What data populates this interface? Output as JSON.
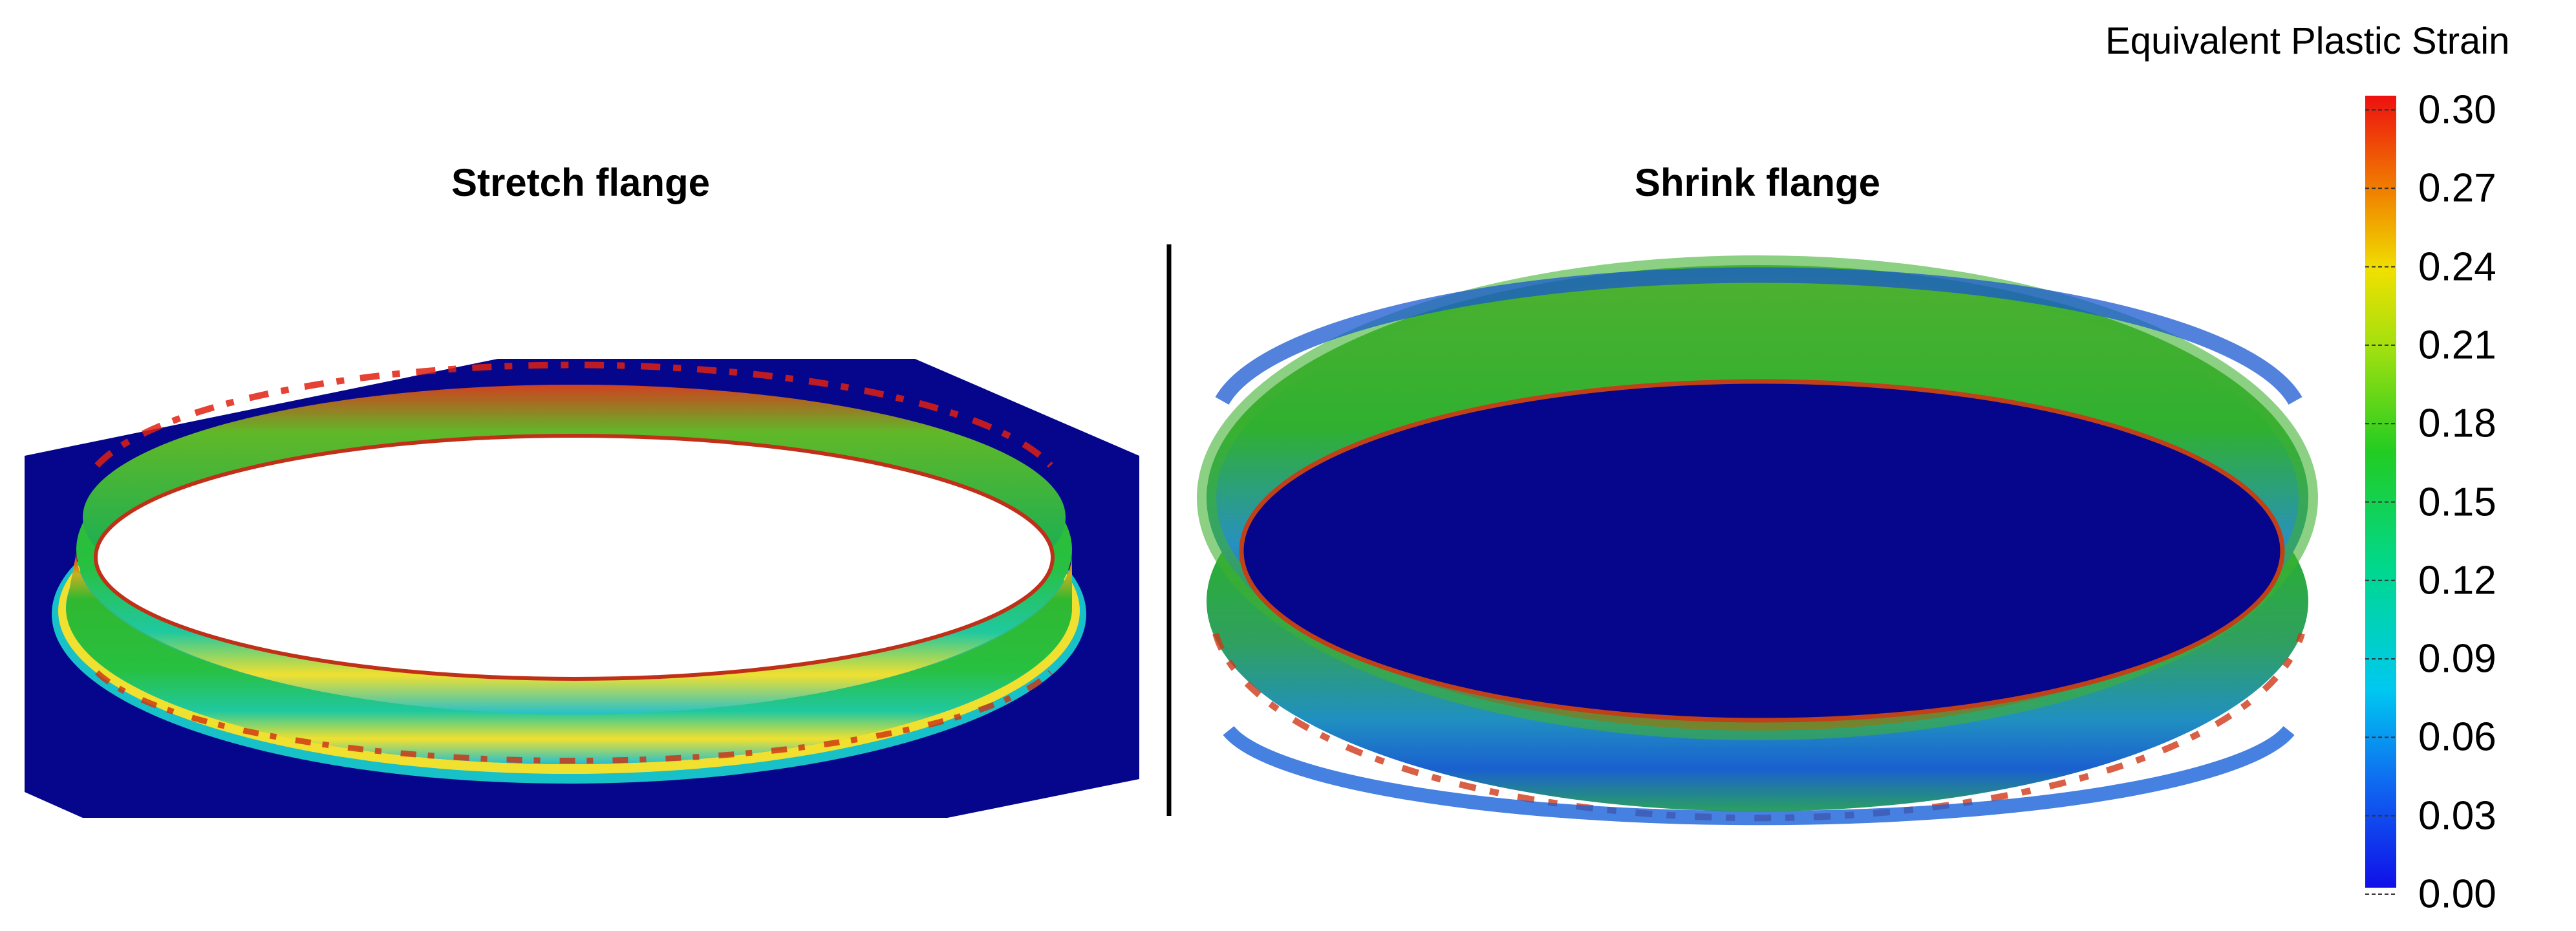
{
  "titles": {
    "left": "Stretch flange",
    "right": "Shrink flange"
  },
  "legend": {
    "title": "Equivalent Plastic Strain",
    "min": 0.0,
    "max": 0.3,
    "ticks": [
      "0.30",
      "0.27",
      "0.24",
      "0.21",
      "0.18",
      "0.15",
      "0.12",
      "0.09",
      "0.06",
      "0.03",
      "0.00"
    ],
    "colors": {
      "low": "#1010e8",
      "mid_low": "#00c8f0",
      "mid": "#22cc22",
      "mid_high": "#f0e000",
      "high": "#ee1010",
      "base": "#06068c"
    }
  }
}
